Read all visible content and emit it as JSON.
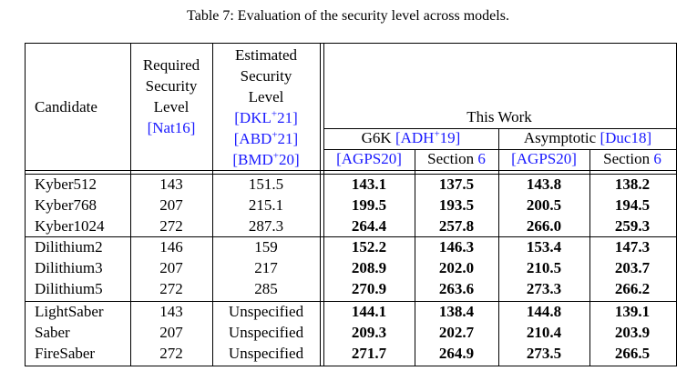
{
  "caption": "Table 7: Evaluation of the security level across models.",
  "header": {
    "candidate": "Candidate",
    "required": {
      "lines": [
        "Required",
        "Security",
        "Level"
      ],
      "cite": "[Nat16]"
    },
    "estimated": {
      "lines": [
        "Estimated",
        "Security",
        "Level"
      ],
      "cites": [
        {
          "a": "[DKL",
          "sup": "+",
          "b": "21]"
        },
        {
          "a": "[ABD",
          "sup": "+",
          "b": "21]"
        },
        {
          "a": "[BMD",
          "sup": "+",
          "b": "20]"
        }
      ]
    },
    "this_work": "This Work",
    "g6k": {
      "text": "G6K",
      "cite": {
        "a": "[ADH",
        "sup": "+",
        "b": "19]"
      }
    },
    "asymptotic": {
      "text": "Asymptotic",
      "cite": "[Duc18]"
    },
    "subcols": [
      {
        "cite": "[AGPS20]"
      },
      {
        "text": "Section",
        "ref": "6"
      },
      {
        "cite": "[AGPS20]"
      },
      {
        "text": "Section",
        "ref": "6"
      }
    ]
  },
  "groups": [
    [
      [
        "Kyber512",
        "143",
        "151.5",
        "143.1",
        "137.5",
        "143.8",
        "138.2"
      ],
      [
        "Kyber768",
        "207",
        "215.1",
        "199.5",
        "193.5",
        "200.5",
        "194.5"
      ],
      [
        "Kyber1024",
        "272",
        "287.3",
        "264.4",
        "257.8",
        "266.0",
        "259.3"
      ]
    ],
    [
      [
        "Dilithium2",
        "146",
        "159",
        "152.2",
        "146.3",
        "153.4",
        "147.3"
      ],
      [
        "Dilithium3",
        "207",
        "217",
        "208.9",
        "202.0",
        "210.5",
        "203.7"
      ],
      [
        "Dilithium5",
        "272",
        "285",
        "270.9",
        "263.6",
        "273.3",
        "266.2"
      ]
    ],
    [
      [
        "LightSaber",
        "143",
        "Unspecified",
        "144.1",
        "138.4",
        "144.8",
        "139.1"
      ],
      [
        "Saber",
        "207",
        "Unspecified",
        "209.3",
        "202.7",
        "210.4",
        "203.9"
      ],
      [
        "FireSaber",
        "272",
        "Unspecified",
        "271.7",
        "264.9",
        "273.5",
        "266.5"
      ]
    ]
  ]
}
